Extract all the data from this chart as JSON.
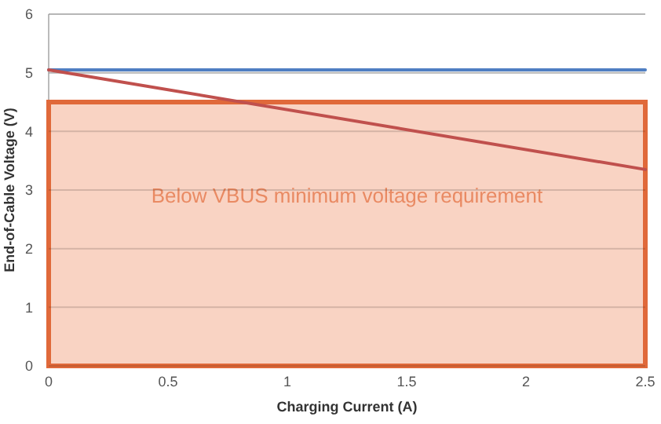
{
  "chart_data": {
    "type": "line",
    "xlabel": "Charging Current (A)",
    "ylabel": "End-of-Cable Voltage (V)",
    "xlim": [
      0,
      2.5
    ],
    "xticks": [
      0,
      0.5,
      1,
      1.5,
      2,
      2.5
    ],
    "ylim": [
      0,
      6
    ],
    "yticks": [
      0,
      1,
      2,
      3,
      4,
      5,
      6
    ],
    "grid": "y",
    "x": [
      0,
      2.5
    ],
    "series": [
      {
        "color": "#4f7ec2",
        "values": [
          5.05,
          5.05
        ]
      },
      {
        "color": "#c0504d",
        "values": [
          5.05,
          3.35
        ]
      }
    ],
    "bands": [
      {
        "axis": "y",
        "from": 0,
        "to": 4.5,
        "label": "Below VBUS minimum voltage requirement",
        "color": "#f8cbb8"
      }
    ]
  }
}
